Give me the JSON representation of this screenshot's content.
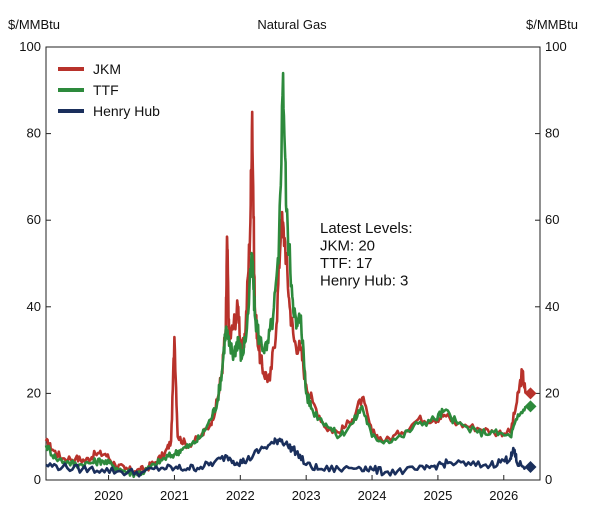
{
  "chart_data": {
    "type": "line",
    "title": "Natural Gas",
    "ylabel_left": "$/MMBtu",
    "ylabel_right": "$/MMBtu",
    "ylim": [
      0,
      100
    ],
    "yticks": [
      0,
      20,
      40,
      60,
      80,
      100
    ],
    "xlim": [
      2019.05,
      2026.55
    ],
    "xticks": [
      2020,
      2021,
      2022,
      2023,
      2024,
      2025,
      2026
    ],
    "xtick_labels": [
      "2020",
      "2021",
      "2022",
      "2023",
      "2024",
      "2025",
      "2026"
    ],
    "grid": false,
    "legend_position": "top-left",
    "annotation": [
      "Latest Levels:",
      "JKM: 20",
      "TTF: 17",
      "Henry Hub: 3"
    ],
    "series": [
      {
        "name": "JKM",
        "color": "#b8322b",
        "marker": "diamond",
        "latest": 20,
        "points": [
          [
            2019.05,
            9
          ],
          [
            2019.15,
            7
          ],
          [
            2019.3,
            5
          ],
          [
            2019.5,
            5
          ],
          [
            2019.65,
            4.5
          ],
          [
            2019.8,
            6
          ],
          [
            2019.95,
            6
          ],
          [
            2020.1,
            3.5
          ],
          [
            2020.25,
            2.5
          ],
          [
            2020.4,
            2
          ],
          [
            2020.55,
            2.5
          ],
          [
            2020.7,
            4
          ],
          [
            2020.85,
            6
          ],
          [
            2020.95,
            9
          ],
          [
            2021.0,
            33
          ],
          [
            2021.05,
            10
          ],
          [
            2021.2,
            8
          ],
          [
            2021.4,
            10
          ],
          [
            2021.55,
            13
          ],
          [
            2021.65,
            18
          ],
          [
            2021.72,
            25
          ],
          [
            2021.78,
            35
          ],
          [
            2021.8,
            56
          ],
          [
            2021.83,
            32
          ],
          [
            2021.9,
            36
          ],
          [
            2021.97,
            40
          ],
          [
            2022.02,
            28
          ],
          [
            2022.08,
            35
          ],
          [
            2022.15,
            58
          ],
          [
            2022.18,
            85
          ],
          [
            2022.22,
            40
          ],
          [
            2022.28,
            30
          ],
          [
            2022.35,
            25
          ],
          [
            2022.45,
            23
          ],
          [
            2022.55,
            36
          ],
          [
            2022.62,
            60
          ],
          [
            2022.68,
            55
          ],
          [
            2022.75,
            40
          ],
          [
            2022.82,
            32
          ],
          [
            2022.92,
            30
          ],
          [
            2023.0,
            22
          ],
          [
            2023.1,
            18
          ],
          [
            2023.3,
            12
          ],
          [
            2023.5,
            11
          ],
          [
            2023.7,
            14
          ],
          [
            2023.85,
            19
          ],
          [
            2024.0,
            11
          ],
          [
            2024.2,
            9
          ],
          [
            2024.45,
            11
          ],
          [
            2024.7,
            14
          ],
          [
            2024.95,
            14
          ],
          [
            2025.1,
            15
          ],
          [
            2025.3,
            13
          ],
          [
            2025.6,
            12
          ],
          [
            2025.85,
            11
          ],
          [
            2026.1,
            11
          ],
          [
            2026.2,
            18
          ],
          [
            2026.28,
            25
          ],
          [
            2026.33,
            20
          ]
        ]
      },
      {
        "name": "TTF",
        "color": "#2d8a3c",
        "marker": "diamond",
        "latest": 17,
        "points": [
          [
            2019.05,
            8
          ],
          [
            2019.2,
            5
          ],
          [
            2019.4,
            4
          ],
          [
            2019.55,
            3.5
          ],
          [
            2019.75,
            4
          ],
          [
            2019.9,
            4.5
          ],
          [
            2020.05,
            3.5
          ],
          [
            2020.25,
            2
          ],
          [
            2020.4,
            1.5
          ],
          [
            2020.55,
            2
          ],
          [
            2020.7,
            3.5
          ],
          [
            2020.85,
            5
          ],
          [
            2021.0,
            6
          ],
          [
            2021.1,
            7
          ],
          [
            2021.25,
            8
          ],
          [
            2021.4,
            10
          ],
          [
            2021.55,
            14
          ],
          [
            2021.65,
            18
          ],
          [
            2021.72,
            25
          ],
          [
            2021.78,
            35
          ],
          [
            2021.83,
            31
          ],
          [
            2021.9,
            29
          ],
          [
            2021.97,
            33
          ],
          [
            2022.02,
            28
          ],
          [
            2022.1,
            35
          ],
          [
            2022.18,
            52
          ],
          [
            2022.22,
            38
          ],
          [
            2022.3,
            32
          ],
          [
            2022.4,
            30
          ],
          [
            2022.5,
            38
          ],
          [
            2022.58,
            50
          ],
          [
            2022.65,
            94
          ],
          [
            2022.7,
            62
          ],
          [
            2022.78,
            45
          ],
          [
            2022.85,
            35
          ],
          [
            2022.92,
            38
          ],
          [
            2023.0,
            20
          ],
          [
            2023.1,
            16
          ],
          [
            2023.3,
            13
          ],
          [
            2023.5,
            10
          ],
          [
            2023.7,
            13
          ],
          [
            2023.85,
            17
          ],
          [
            2024.0,
            10
          ],
          [
            2024.2,
            9
          ],
          [
            2024.45,
            10
          ],
          [
            2024.7,
            13
          ],
          [
            2024.95,
            14
          ],
          [
            2025.1,
            16
          ],
          [
            2025.3,
            13
          ],
          [
            2025.6,
            11
          ],
          [
            2025.85,
            11
          ],
          [
            2026.1,
            10
          ],
          [
            2026.2,
            14
          ],
          [
            2026.33,
            17
          ]
        ]
      },
      {
        "name": "Henry Hub",
        "color": "#1a2f5c",
        "marker": "diamond",
        "latest": 3,
        "points": [
          [
            2019.05,
            3.5
          ],
          [
            2019.3,
            3
          ],
          [
            2019.6,
            2.5
          ],
          [
            2019.9,
            2.4
          ],
          [
            2020.2,
            1.9
          ],
          [
            2020.5,
            1.7
          ],
          [
            2020.8,
            2.8
          ],
          [
            2021.0,
            2.7
          ],
          [
            2021.2,
            2.7
          ],
          [
            2021.4,
            3
          ],
          [
            2021.6,
            4
          ],
          [
            2021.8,
            5.5
          ],
          [
            2021.95,
            4
          ],
          [
            2022.1,
            4.5
          ],
          [
            2022.3,
            7
          ],
          [
            2022.5,
            8.5
          ],
          [
            2022.6,
            9.5
          ],
          [
            2022.72,
            8
          ],
          [
            2022.85,
            6.5
          ],
          [
            2023.0,
            3.5
          ],
          [
            2023.2,
            2.5
          ],
          [
            2023.5,
            2.5
          ],
          [
            2023.8,
            3
          ],
          [
            2024.0,
            2.5
          ],
          [
            2024.2,
            1.8
          ],
          [
            2024.5,
            2.2
          ],
          [
            2024.8,
            2.5
          ],
          [
            2025.0,
            3.5
          ],
          [
            2025.2,
            4
          ],
          [
            2025.5,
            3.5
          ],
          [
            2025.8,
            3.5
          ],
          [
            2026.0,
            4.5
          ],
          [
            2026.1,
            5
          ],
          [
            2026.16,
            7
          ],
          [
            2026.2,
            4
          ],
          [
            2026.33,
            3
          ]
        ]
      }
    ]
  }
}
